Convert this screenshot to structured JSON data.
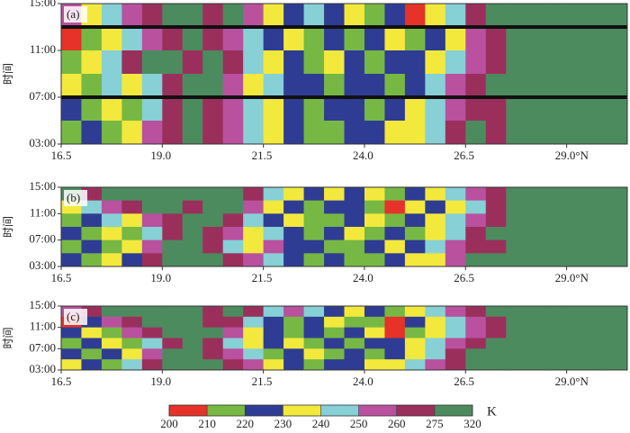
{
  "chart_data": [
    {
      "type": "heatmap",
      "label": "(a)",
      "ylabel": "时间",
      "x": [
        16.75,
        17.25,
        17.75,
        18.25,
        18.75,
        19.25,
        19.75,
        20.25,
        20.75,
        21.25,
        21.75,
        22.25,
        22.75,
        23.25,
        23.75,
        24.25,
        24.75,
        25.25,
        25.75,
        26.25,
        26.75,
        27.25,
        27.75,
        28.25,
        28.75,
        29.25,
        29.75,
        30.25
      ],
      "y": [
        14,
        12,
        10,
        8,
        6,
        4
      ],
      "z": [
        [
          255,
          235,
          245,
          255,
          268,
          290,
          290,
          268,
          290,
          255,
          235,
          225,
          245,
          225,
          235,
          215,
          225,
          205,
          235,
          245,
          268,
          290,
          290,
          290,
          290,
          290,
          290,
          290
        ],
        [
          205,
          215,
          235,
          245,
          255,
          268,
          290,
          268,
          255,
          245,
          225,
          235,
          215,
          225,
          215,
          225,
          235,
          215,
          225,
          235,
          255,
          268,
          290,
          290,
          290,
          290,
          290,
          290
        ],
        [
          215,
          235,
          245,
          268,
          290,
          290,
          268,
          290,
          268,
          245,
          235,
          225,
          215,
          235,
          225,
          215,
          225,
          225,
          235,
          245,
          255,
          268,
          290,
          290,
          290,
          290,
          290,
          290
        ],
        [
          235,
          215,
          245,
          235,
          245,
          268,
          290,
          290,
          255,
          235,
          245,
          225,
          225,
          215,
          225,
          225,
          215,
          225,
          245,
          255,
          268,
          290,
          290,
          290,
          290,
          290,
          290,
          290
        ],
        [
          225,
          215,
          235,
          215,
          245,
          268,
          290,
          268,
          255,
          245,
          235,
          225,
          215,
          225,
          225,
          215,
          225,
          235,
          245,
          255,
          268,
          268,
          290,
          290,
          290,
          290,
          290,
          290
        ],
        [
          215,
          225,
          215,
          235,
          255,
          268,
          290,
          268,
          255,
          245,
          235,
          225,
          215,
          215,
          225,
          225,
          235,
          235,
          245,
          268,
          290,
          268,
          290,
          290,
          290,
          290,
          290,
          290
        ]
      ],
      "hlines": [
        7,
        13
      ],
      "xlim": [
        16.5,
        30.5
      ],
      "ylim": [
        3,
        15
      ],
      "xticks": [
        16.5,
        {
          "value": 19,
          "label": "19.0"
        },
        21.5,
        {
          "value": 24,
          "label": "24.0"
        },
        26.5,
        {
          "value": 29,
          "label": "29.0°N"
        }
      ],
      "yticks": [
        {
          "value": 3,
          "label": "03:00"
        },
        {
          "value": 7,
          "label": "07:00"
        },
        {
          "value": 11,
          "label": "11:00"
        },
        {
          "value": 15,
          "label": "15:00"
        }
      ]
    },
    {
      "type": "heatmap",
      "label": "(b)",
      "ylabel": "时间",
      "x": [
        16.75,
        17.25,
        17.75,
        18.25,
        18.75,
        19.25,
        19.75,
        20.25,
        20.75,
        21.25,
        21.75,
        22.25,
        22.75,
        23.25,
        23.75,
        24.25,
        24.75,
        25.25,
        25.75,
        26.25,
        26.75,
        27.25,
        27.75,
        28.25,
        28.75,
        29.25,
        29.75,
        30.25
      ],
      "y": [
        14,
        12,
        10,
        8,
        6,
        4
      ],
      "z": [
        [
          290,
          268,
          290,
          290,
          290,
          290,
          290,
          290,
          290,
          268,
          245,
          235,
          225,
          235,
          225,
          235,
          215,
          225,
          235,
          245,
          255,
          268,
          290,
          290,
          290,
          290,
          290,
          290
        ],
        [
          235,
          245,
          255,
          268,
          290,
          290,
          268,
          290,
          290,
          255,
          235,
          225,
          215,
          225,
          225,
          215,
          205,
          235,
          225,
          235,
          245,
          268,
          290,
          290,
          290,
          290,
          290,
          290
        ],
        [
          215,
          225,
          245,
          235,
          255,
          268,
          290,
          290,
          268,
          245,
          225,
          235,
          215,
          215,
          225,
          235,
          215,
          225,
          235,
          245,
          255,
          268,
          290,
          290,
          290,
          290,
          290,
          290
        ],
        [
          225,
          215,
          235,
          215,
          245,
          268,
          290,
          268,
          255,
          235,
          245,
          225,
          215,
          225,
          235,
          215,
          225,
          215,
          235,
          245,
          268,
          290,
          290,
          290,
          290,
          290,
          290,
          290
        ],
        [
          215,
          225,
          215,
          235,
          255,
          290,
          290,
          268,
          245,
          235,
          255,
          225,
          225,
          215,
          215,
          225,
          235,
          225,
          245,
          255,
          268,
          268,
          290,
          290,
          290,
          290,
          290,
          290
        ],
        [
          225,
          215,
          235,
          225,
          268,
          290,
          290,
          290,
          268,
          255,
          245,
          225,
          215,
          225,
          215,
          215,
          225,
          235,
          235,
          255,
          290,
          290,
          290,
          290,
          290,
          290,
          290,
          290
        ]
      ],
      "xlim": [
        16.5,
        30.5
      ],
      "ylim": [
        3,
        15
      ],
      "xticks": [
        16.5,
        {
          "value": 19,
          "label": "19.0"
        },
        21.5,
        {
          "value": 24,
          "label": "24.0"
        },
        26.5,
        {
          "value": 29,
          "label": "29.0°N"
        }
      ],
      "yticks": [
        {
          "value": 3,
          "label": "03:00"
        },
        {
          "value": 7,
          "label": "07:00"
        },
        {
          "value": 11,
          "label": "11:00"
        },
        {
          "value": 15,
          "label": "15:00"
        }
      ]
    },
    {
      "type": "heatmap",
      "label": "(c)",
      "ylabel": "时间",
      "x": [
        16.75,
        17.25,
        17.75,
        18.25,
        18.75,
        19.25,
        19.75,
        20.25,
        20.75,
        21.25,
        21.75,
        22.25,
        22.75,
        23.25,
        23.75,
        24.25,
        24.75,
        25.25,
        25.75,
        26.25,
        26.75,
        27.25,
        27.75,
        28.25,
        28.75,
        29.25,
        29.75,
        30.25
      ],
      "y": [
        14,
        12,
        10,
        8,
        6,
        4
      ],
      "z": [
        [
          255,
          268,
          290,
          290,
          290,
          290,
          290,
          268,
          290,
          268,
          245,
          255,
          245,
          225,
          235,
          225,
          215,
          235,
          245,
          255,
          268,
          290,
          290,
          290,
          290,
          290,
          290,
          290
        ],
        [
          205,
          225,
          255,
          268,
          290,
          290,
          290,
          268,
          268,
          245,
          225,
          215,
          225,
          235,
          215,
          215,
          205,
          225,
          235,
          245,
          255,
          268,
          290,
          290,
          290,
          290,
          290,
          290
        ],
        [
          225,
          235,
          215,
          255,
          268,
          290,
          290,
          290,
          255,
          235,
          225,
          215,
          225,
          215,
          225,
          235,
          205,
          215,
          235,
          245,
          255,
          268,
          290,
          290,
          290,
          290,
          290,
          290
        ],
        [
          215,
          225,
          235,
          215,
          245,
          268,
          290,
          268,
          245,
          235,
          225,
          235,
          215,
          225,
          215,
          225,
          225,
          235,
          245,
          255,
          268,
          290,
          290,
          290,
          290,
          290,
          290,
          290
        ],
        [
          225,
          215,
          225,
          235,
          255,
          290,
          290,
          268,
          255,
          245,
          215,
          225,
          235,
          215,
          225,
          215,
          225,
          235,
          245,
          268,
          290,
          290,
          290,
          290,
          290,
          290,
          290,
          290
        ],
        [
          235,
          225,
          215,
          245,
          268,
          290,
          290,
          290,
          268,
          255,
          235,
          225,
          215,
          225,
          225,
          235,
          235,
          245,
          255,
          268,
          290,
          290,
          290,
          290,
          290,
          290,
          290,
          290
        ]
      ],
      "xlim": [
        16.5,
        30.5
      ],
      "ylim": [
        3,
        15
      ],
      "xticks": [
        16.5,
        {
          "value": 19,
          "label": "19.0"
        },
        21.5,
        {
          "value": 24,
          "label": "24.0"
        },
        26.5,
        {
          "value": 29,
          "label": "29.0°N"
        }
      ],
      "yticks": [
        {
          "value": 3,
          "label": "03:00"
        },
        {
          "value": 7,
          "label": "07:00"
        },
        {
          "value": 11,
          "label": "11:00"
        },
        {
          "value": 15,
          "label": "15:00"
        }
      ]
    }
  ],
  "colorbar": {
    "bounds": [
      200,
      210,
      220,
      230,
      240,
      250,
      260,
      275,
      320
    ],
    "colors": [
      "#e63228",
      "#76b843",
      "#2f3c94",
      "#f3e93c",
      "#86d0d6",
      "#b9519f",
      "#9b2f5c",
      "#4c8b5e"
    ],
    "unit": "K"
  }
}
